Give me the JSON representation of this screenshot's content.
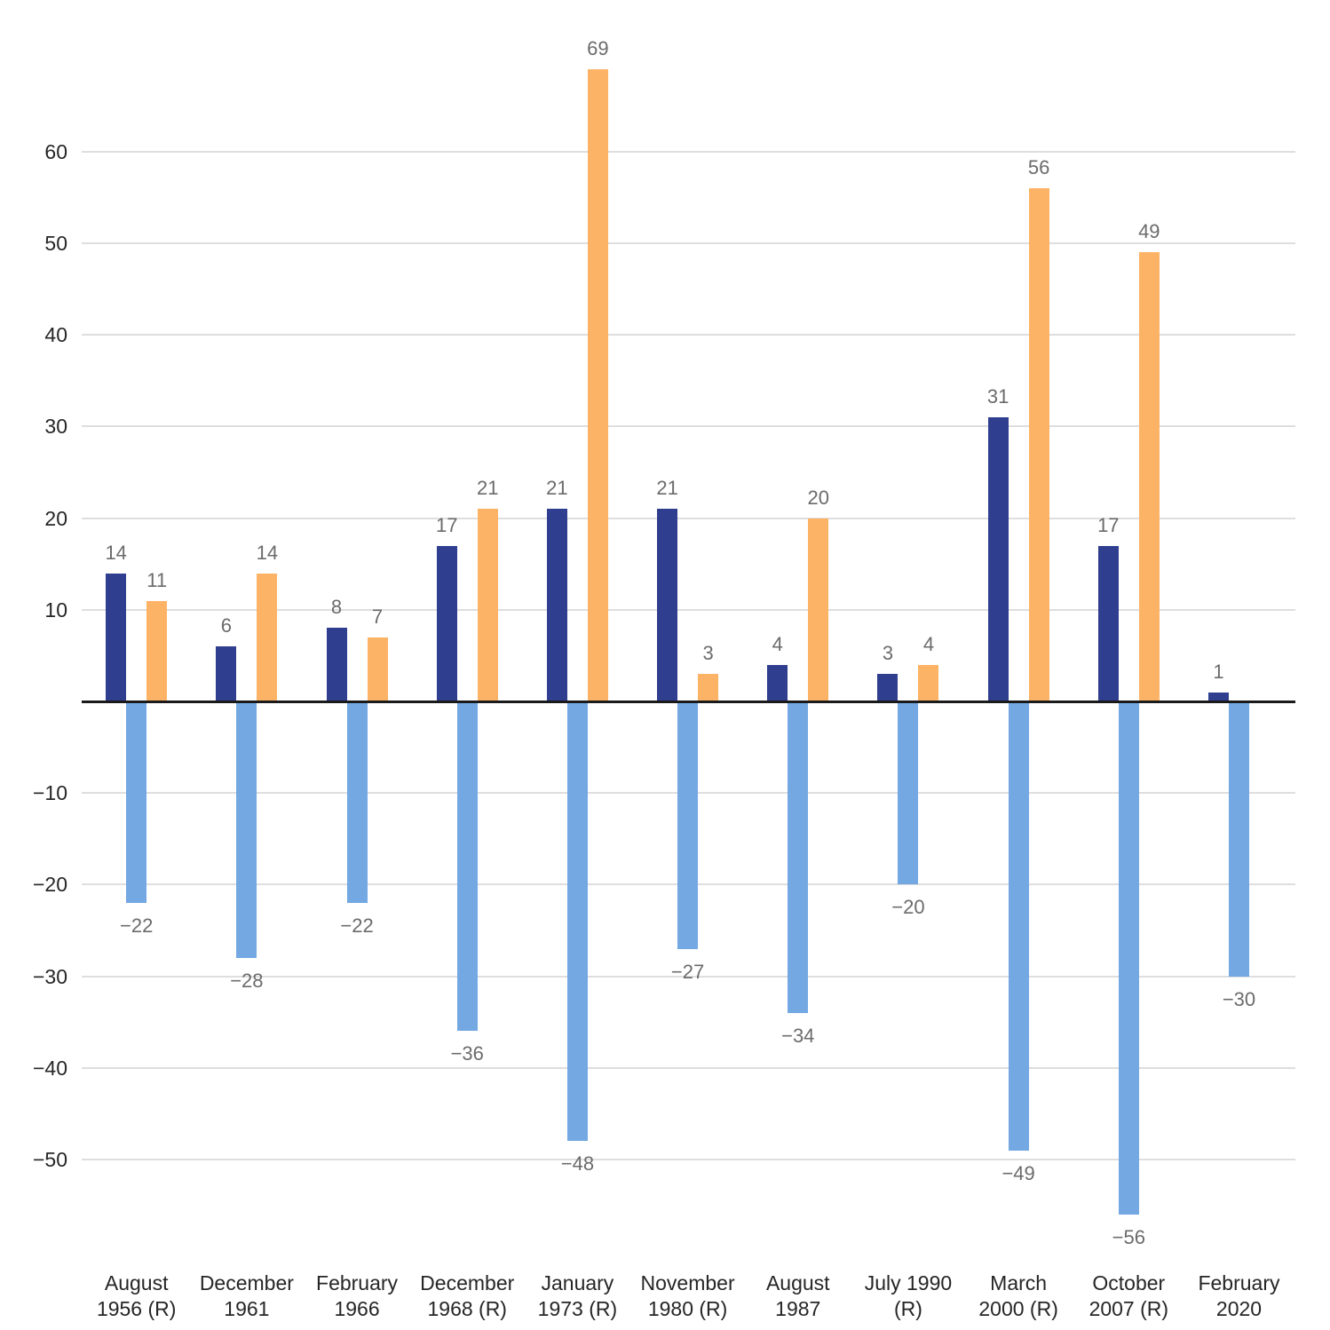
{
  "chart_data": {
    "type": "bar",
    "title": "",
    "xlabel": "",
    "ylabel": "",
    "grid": true,
    "legend_position": "none",
    "value_labels_shown": true,
    "ylim": [
      -60,
      72
    ],
    "y_ticks": [
      60,
      50,
      40,
      30,
      20,
      10,
      -10,
      -20,
      -30,
      -40,
      -50
    ],
    "categories": [
      "August 1956 (R)",
      "December 1961",
      "February 1966",
      "December 1968 (R)",
      "January 1973 (R)",
      "November 1980 (R)",
      "August 1987",
      "July 1990 (R)",
      "March 2000 (R)",
      "October 2007 (R)",
      "February 2020"
    ],
    "category_label_lines": [
      [
        "August",
        "1956 (R)"
      ],
      [
        "December",
        "1961"
      ],
      [
        "February",
        "1966"
      ],
      [
        "December",
        "1968 (R)"
      ],
      [
        "January",
        "1973 (R)"
      ],
      [
        "November",
        "1980 (R)"
      ],
      [
        "August",
        "1987"
      ],
      [
        "July 1990",
        "(R)"
      ],
      [
        "March",
        "2000 (R)"
      ],
      [
        "October",
        "2007 (R)"
      ],
      [
        "February",
        "2020"
      ]
    ],
    "series": [
      {
        "name": "dark_blue",
        "color": "#2f3e8f",
        "values": [
          14,
          6,
          8,
          17,
          21,
          21,
          4,
          3,
          31,
          17,
          1
        ]
      },
      {
        "name": "light_blue",
        "color": "#73a8e3",
        "values": [
          -22,
          -28,
          -22,
          -36,
          -48,
          -27,
          -34,
          -20,
          -49,
          -56,
          -30
        ]
      },
      {
        "name": "orange",
        "color": "#fdb366",
        "values": [
          11,
          14,
          7,
          21,
          69,
          3,
          20,
          4,
          56,
          49,
          null
        ]
      }
    ]
  },
  "colors": {
    "background": "#ffffff",
    "gridline": "#dedede",
    "zero_line": "#1a1a1a",
    "value_label": "#6b6b6b",
    "axis_label": "#262626"
  }
}
